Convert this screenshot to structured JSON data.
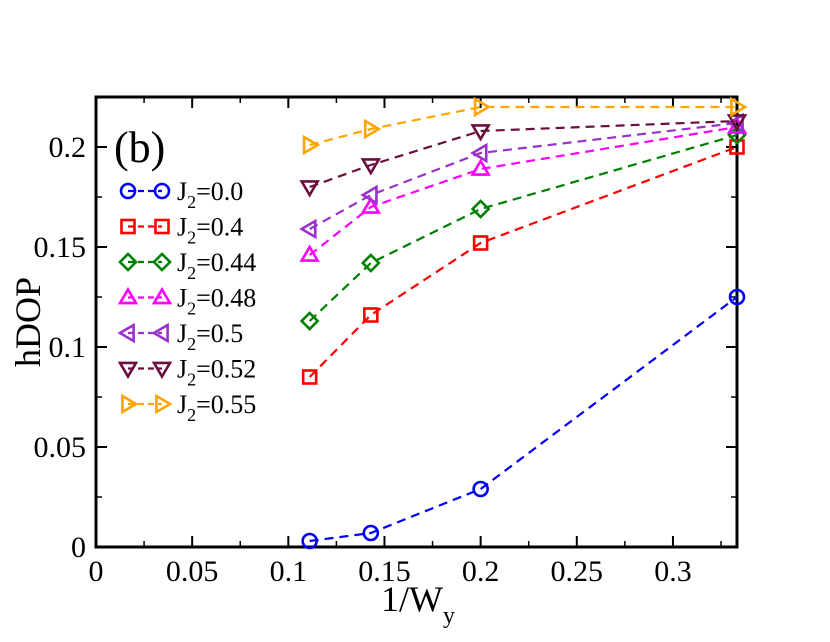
{
  "chart_data": {
    "type": "line",
    "panel_label": "(b)",
    "xlabel_main": "1/W",
    "xlabel_sub": "y",
    "ylabel": "hDOP",
    "xlim": [
      0,
      0.3333
    ],
    "ylim": [
      0,
      0.225
    ],
    "x_ticks": [
      {
        "value": 0,
        "label": "0"
      },
      {
        "value": 0.05,
        "label": "0.05"
      },
      {
        "value": 0.1,
        "label": "0.1"
      },
      {
        "value": 0.15,
        "label": "0.15"
      },
      {
        "value": 0.2,
        "label": "0.2"
      },
      {
        "value": 0.25,
        "label": "0.25"
      },
      {
        "value": 0.3,
        "label": "0.3"
      }
    ],
    "y_ticks": [
      {
        "value": 0,
        "label": "0"
      },
      {
        "value": 0.05,
        "label": "0.05"
      },
      {
        "value": 0.1,
        "label": "0.1"
      },
      {
        "value": 0.15,
        "label": "0.15"
      },
      {
        "value": 0.2,
        "label": "0.2"
      }
    ],
    "x": [
      0.1111,
      0.1429,
      0.2,
      0.3333
    ],
    "legend_placement": "upper-left",
    "grid": false,
    "series": [
      {
        "name": "J2=0.0",
        "legend_main": "J",
        "legend_sub": "2",
        "legend_rest": "=0.0",
        "marker": "circle",
        "color": "#0000ff",
        "values": [
          0.003,
          0.007,
          0.029,
          0.125
        ]
      },
      {
        "name": "J2=0.4",
        "legend_main": "J",
        "legend_sub": "2",
        "legend_rest": "=0.4",
        "marker": "square",
        "color": "#ff0000",
        "values": [
          0.085,
          0.116,
          0.152,
          0.2
        ]
      },
      {
        "name": "J2=0.44",
        "legend_main": "J",
        "legend_sub": "2",
        "legend_rest": "=0.44",
        "marker": "diamond",
        "color": "#008000",
        "values": [
          0.113,
          0.142,
          0.169,
          0.206
        ]
      },
      {
        "name": "J2=0.48",
        "legend_main": "J",
        "legend_sub": "2",
        "legend_rest": "=0.48",
        "marker": "triangle-up",
        "color": "#ff00ff",
        "values": [
          0.146,
          0.17,
          0.189,
          0.21
        ]
      },
      {
        "name": "J2=0.5",
        "legend_main": "J",
        "legend_sub": "2",
        "legend_rest": "=0.5",
        "marker": "triangle-left",
        "color": "#9932cc",
        "values": [
          0.159,
          0.176,
          0.197,
          0.212
        ]
      },
      {
        "name": "J2=0.52",
        "legend_main": "J",
        "legend_sub": "2",
        "legend_rest": "=0.52",
        "marker": "triangle-down",
        "color": "#6b0f3f",
        "values": [
          0.18,
          0.191,
          0.208,
          0.213
        ]
      },
      {
        "name": "J2=0.55",
        "legend_main": "J",
        "legend_sub": "2",
        "legend_rest": "=0.55",
        "marker": "triangle-right",
        "color": "#ffa500",
        "values": [
          0.201,
          0.209,
          0.22,
          0.22
        ]
      }
    ]
  }
}
